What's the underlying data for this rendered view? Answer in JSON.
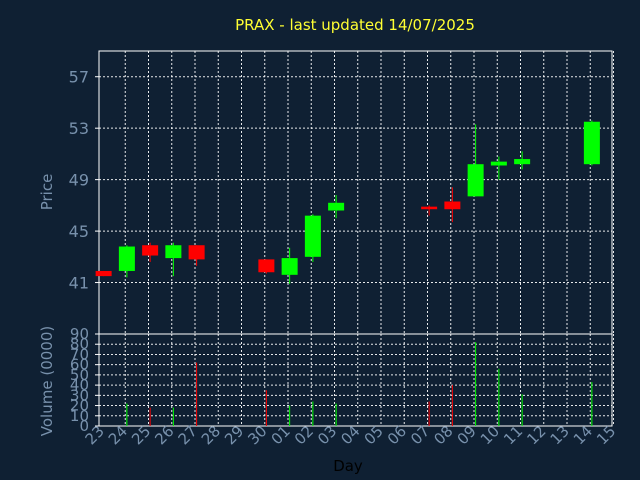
{
  "chart_data": [
    {
      "type": "candlestick",
      "title": "PRAX - last updated 14/07/2025",
      "ylabel": "Price",
      "ylim": [
        37,
        59
      ],
      "yticks": [
        41,
        45,
        49,
        53,
        57
      ],
      "grid": true,
      "colors": {
        "up": "#00ff00",
        "down": "#ff0000",
        "title": "#ffff33",
        "text": "#7891ac",
        "background": "#0f2033"
      },
      "categories": [
        "23",
        "24",
        "25",
        "26",
        "27",
        "28",
        "29",
        "30",
        "01",
        "02",
        "03",
        "04",
        "05",
        "06",
        "07",
        "08",
        "09",
        "10",
        "11",
        "12",
        "13",
        "14",
        "15"
      ],
      "candles": [
        {
          "x": "23",
          "open": 41.9,
          "close": 41.5,
          "high": 41.9,
          "low": 41.5
        },
        {
          "x": "24",
          "open": 41.9,
          "close": 43.8,
          "high": 43.9,
          "low": 41.4
        },
        {
          "x": "25",
          "open": 43.9,
          "close": 43.1,
          "high": 44.1,
          "low": 42.6
        },
        {
          "x": "26",
          "open": 42.9,
          "close": 43.9,
          "high": 44.1,
          "low": 41.5
        },
        {
          "x": "27",
          "open": 43.9,
          "close": 42.8,
          "high": 43.9,
          "low": 42.3
        },
        {
          "x": "30",
          "open": 42.8,
          "close": 41.8,
          "high": 42.8,
          "low": 41.7
        },
        {
          "x": "01",
          "open": 41.6,
          "close": 42.9,
          "high": 43.7,
          "low": 40.9
        },
        {
          "x": "02",
          "open": 43.0,
          "close": 46.2,
          "high": 46.3,
          "low": 42.6
        },
        {
          "x": "03",
          "open": 46.6,
          "close": 47.2,
          "high": 47.8,
          "low": 46.0
        },
        {
          "x": "07",
          "open": 46.9,
          "close": 46.7,
          "high": 47.0,
          "low": 46.2
        },
        {
          "x": "08",
          "open": 47.3,
          "close": 46.7,
          "high": 48.4,
          "low": 45.7
        },
        {
          "x": "09",
          "open": 47.7,
          "close": 50.2,
          "high": 53.3,
          "low": 47.7
        },
        {
          "x": "10",
          "open": 50.1,
          "close": 50.4,
          "high": 50.8,
          "low": 49.0
        },
        {
          "x": "11",
          "open": 50.2,
          "close": 50.6,
          "high": 51.2,
          "low": 49.8
        },
        {
          "x": "14",
          "open": 50.2,
          "close": 53.5,
          "high": 53.6,
          "low": 50.1
        }
      ]
    },
    {
      "type": "bar",
      "ylabel": "Volume (0000)",
      "xlabel": "Day",
      "ylim": [
        0,
        90
      ],
      "yticks": [
        0,
        10,
        20,
        30,
        40,
        50,
        60,
        70,
        80,
        90
      ],
      "grid": true,
      "categories": [
        "23",
        "24",
        "25",
        "26",
        "27",
        "28",
        "29",
        "30",
        "01",
        "02",
        "03",
        "04",
        "05",
        "06",
        "07",
        "08",
        "09",
        "10",
        "11",
        "12",
        "13",
        "14",
        "15"
      ],
      "bars": [
        {
          "x": "23",
          "value": 0,
          "dir": "down"
        },
        {
          "x": "24",
          "value": 22,
          "dir": "up"
        },
        {
          "x": "25",
          "value": 18,
          "dir": "down"
        },
        {
          "x": "26",
          "value": 18,
          "dir": "up"
        },
        {
          "x": "27",
          "value": 62,
          "dir": "down"
        },
        {
          "x": "30",
          "value": 35,
          "dir": "down"
        },
        {
          "x": "01",
          "value": 20,
          "dir": "up"
        },
        {
          "x": "02",
          "value": 24,
          "dir": "up"
        },
        {
          "x": "03",
          "value": 22,
          "dir": "up"
        },
        {
          "x": "07",
          "value": 24,
          "dir": "down"
        },
        {
          "x": "08",
          "value": 40,
          "dir": "down"
        },
        {
          "x": "09",
          "value": 82,
          "dir": "up"
        },
        {
          "x": "10",
          "value": 56,
          "dir": "up"
        },
        {
          "x": "11",
          "value": 31,
          "dir": "up"
        },
        {
          "x": "14",
          "value": 43,
          "dir": "up"
        }
      ]
    }
  ]
}
